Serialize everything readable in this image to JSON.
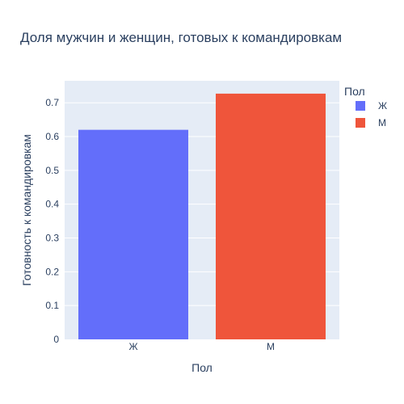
{
  "chart_data": {
    "type": "bar",
    "title": "Доля мужчин и женщин, готовых к командировкам",
    "xlabel": "Пол",
    "ylabel": "Готовность к командировкам",
    "categories": [
      "Ж",
      "М"
    ],
    "series": [
      {
        "name": "Ж",
        "category": "Ж",
        "value": 0.62,
        "color": "#636efa"
      },
      {
        "name": "М",
        "category": "М",
        "value": 0.727,
        "color": "#ef553b"
      }
    ],
    "ylim": [
      0,
      0.765
    ],
    "yticks": [
      0,
      0.1,
      0.2,
      0.3,
      0.4,
      0.5,
      0.6,
      0.7
    ],
    "ytick_labels": [
      "0",
      "0.1",
      "0.2",
      "0.3",
      "0.4",
      "0.5",
      "0.6",
      "0.7"
    ],
    "grid": true,
    "plot_background": "#e5ecf6",
    "legend": {
      "title": "Пол",
      "placement": "top-right"
    }
  }
}
